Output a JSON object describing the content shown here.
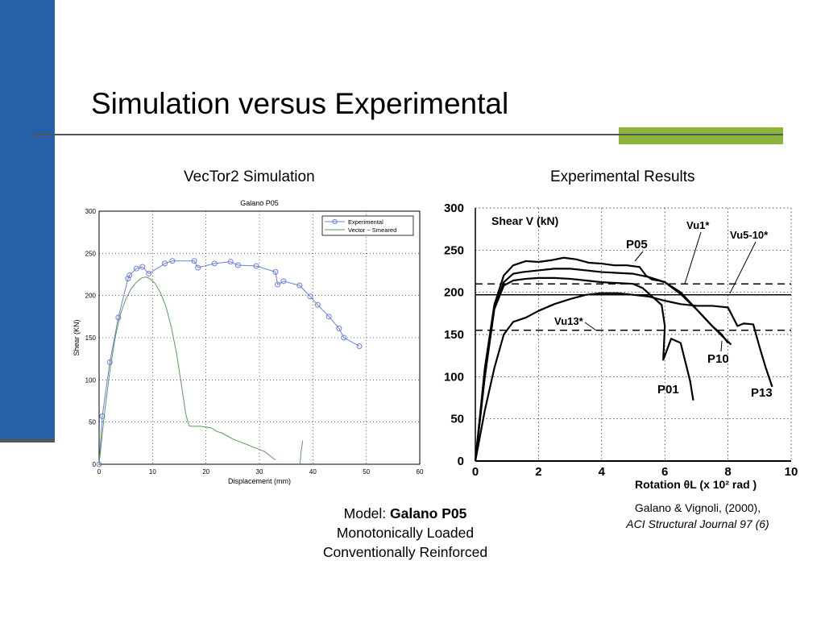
{
  "slide": {
    "title": "Simulation versus Experimental",
    "left_subtitle": "VecTor2 Simulation",
    "right_subtitle": "Experimental Results",
    "caption": {
      "model_prefix": "Model: ",
      "model_name": "Galano P05",
      "line2": "Monotonically Loaded",
      "line3": "Conventionally Reinforced"
    },
    "citation": {
      "line1": "Galano & Vignoli, (2000),",
      "line2": "ACI Structural Journal 97 (6)"
    },
    "colors": {
      "left_bar": "#2860a8",
      "accent_bar": "#8cb33a",
      "rule": "#555555"
    }
  },
  "chart_data": [
    {
      "type": "line",
      "title": "Galano P05",
      "xlabel": "Displacement (mm)",
      "ylabel": "Shear (KN)",
      "xlim": [
        0,
        60
      ],
      "ylim": [
        0,
        300
      ],
      "xticks": [
        0,
        10,
        20,
        30,
        40,
        50,
        60
      ],
      "yticks": [
        0,
        50,
        100,
        150,
        200,
        250,
        300
      ],
      "grid": true,
      "legend_position": "top-right",
      "series": [
        {
          "name": "Experimental",
          "color": "#6b7fe0",
          "marker": "circle",
          "x": [
            0,
            0.6,
            2,
            3.6,
            5.4,
            5.7,
            7,
            8.1,
            9.3,
            12.3,
            13.7,
            17.8,
            18.5,
            21.6,
            24.6,
            26,
            29.4,
            33,
            33.4,
            34.5,
            37.5,
            39.5,
            40.9,
            43,
            44.9,
            45.8,
            48.7
          ],
          "y": [
            0,
            57,
            121,
            174,
            220,
            224,
            232,
            234,
            226,
            238,
            241,
            241,
            233,
            238,
            240,
            236,
            235,
            228,
            213,
            217,
            212,
            199,
            189,
            175,
            161,
            150,
            140
          ]
        },
        {
          "name": "Vector ~ Smeared",
          "color": "#5a9a5a",
          "marker": "none",
          "x": [
            0,
            0.5,
            1,
            2,
            3,
            4,
            5,
            6,
            7,
            8,
            8.8,
            9.5,
            10.5,
            11.5,
            12.5,
            13.5,
            14.5,
            15.5,
            16.2,
            16.8,
            17.2,
            17.8,
            19,
            21,
            22,
            23,
            25,
            27,
            29,
            31,
            32,
            33
          ],
          "y": [
            0,
            30,
            60,
            110,
            150,
            178,
            196,
            208,
            216,
            221,
            222,
            220,
            214,
            203,
            187,
            163,
            131,
            90,
            60,
            46,
            45,
            45,
            45,
            43,
            39,
            37,
            30,
            25,
            20,
            15,
            10,
            5
          ],
          "extra_segment": {
            "x": [
              37.6,
              37.8,
              38.1
            ],
            "y": [
              0,
              15,
              28
            ]
          }
        }
      ]
    },
    {
      "type": "line",
      "xlabel": "Rotation θL (x 10² rad )",
      "ylabel": "Shear V (kN)",
      "xlim": [
        0,
        10
      ],
      "ylim": [
        0,
        300
      ],
      "xticks": [
        0,
        2,
        4,
        6,
        8,
        10
      ],
      "yticks": [
        0,
        50,
        100,
        150,
        200,
        250,
        300
      ],
      "grid": true,
      "reference_lines": [
        {
          "name": "Vu1*",
          "y": 210,
          "style": "dashed"
        },
        {
          "name": "Vu5-10*",
          "y": 197,
          "style": "solid"
        },
        {
          "name": "Vu13*",
          "y": 155,
          "style": "dashed"
        }
      ],
      "series": [
        {
          "name": "P05",
          "color": "#000000",
          "x": [
            0,
            0.3,
            0.6,
            0.9,
            1.2,
            1.6,
            2,
            2.4,
            2.8,
            3.2,
            3.6,
            4,
            4.4,
            4.8,
            5.2,
            5.4,
            5.6,
            5.8,
            6.0,
            6.5,
            7.0,
            7.5,
            7.8,
            8.0
          ],
          "y": [
            0,
            110,
            185,
            220,
            232,
            237,
            236,
            238,
            241,
            239,
            235,
            234,
            232,
            232,
            230,
            220,
            215,
            214,
            212,
            198,
            180,
            160,
            150,
            140
          ]
        },
        {
          "name": "P10",
          "color": "#000000",
          "x": [
            0,
            0.3,
            0.6,
            0.9,
            1.2,
            1.5,
            2,
            2.5,
            3,
            3.5,
            4,
            4.5,
            5,
            5.5,
            6,
            6.5,
            7,
            7.5,
            7.9,
            8.1
          ],
          "y": [
            0,
            100,
            180,
            212,
            222,
            224,
            226,
            228,
            228,
            226,
            224,
            223,
            222,
            218,
            212,
            200,
            180,
            160,
            145,
            138
          ]
        },
        {
          "name": "P01",
          "color": "#000000",
          "x": [
            0,
            0.3,
            0.6,
            0.9,
            1.2,
            1.6,
            2,
            2.5,
            3,
            3.5,
            4,
            4.5,
            5,
            5.3,
            5.6,
            5.9,
            6.0,
            5.95,
            6.05,
            6.2,
            6.5,
            6.8,
            6.9
          ],
          "y": [
            0,
            100,
            180,
            208,
            214,
            216,
            217,
            217,
            216,
            214,
            212,
            211,
            210,
            205,
            195,
            185,
            160,
            120,
            130,
            145,
            140,
            95,
            72
          ]
        },
        {
          "name": "P13",
          "color": "#000000",
          "x": [
            0,
            0.3,
            0.6,
            0.9,
            1.2,
            1.6,
            2,
            2.5,
            3,
            3.5,
            4,
            4.5,
            5,
            5.5,
            6,
            6.5,
            7,
            7.5,
            8,
            8.3,
            8.5,
            8.8,
            9.0,
            9.2,
            9.4
          ],
          "y": [
            0,
            60,
            110,
            150,
            165,
            170,
            178,
            186,
            192,
            197,
            199,
            199,
            197,
            195,
            190,
            186,
            184,
            184,
            182,
            160,
            163,
            162,
            135,
            110,
            88
          ]
        }
      ],
      "annotations": [
        "Vu1*",
        "Vu5-10*",
        "P05",
        "Vu13*",
        "P10",
        "P01",
        "P13"
      ]
    }
  ]
}
